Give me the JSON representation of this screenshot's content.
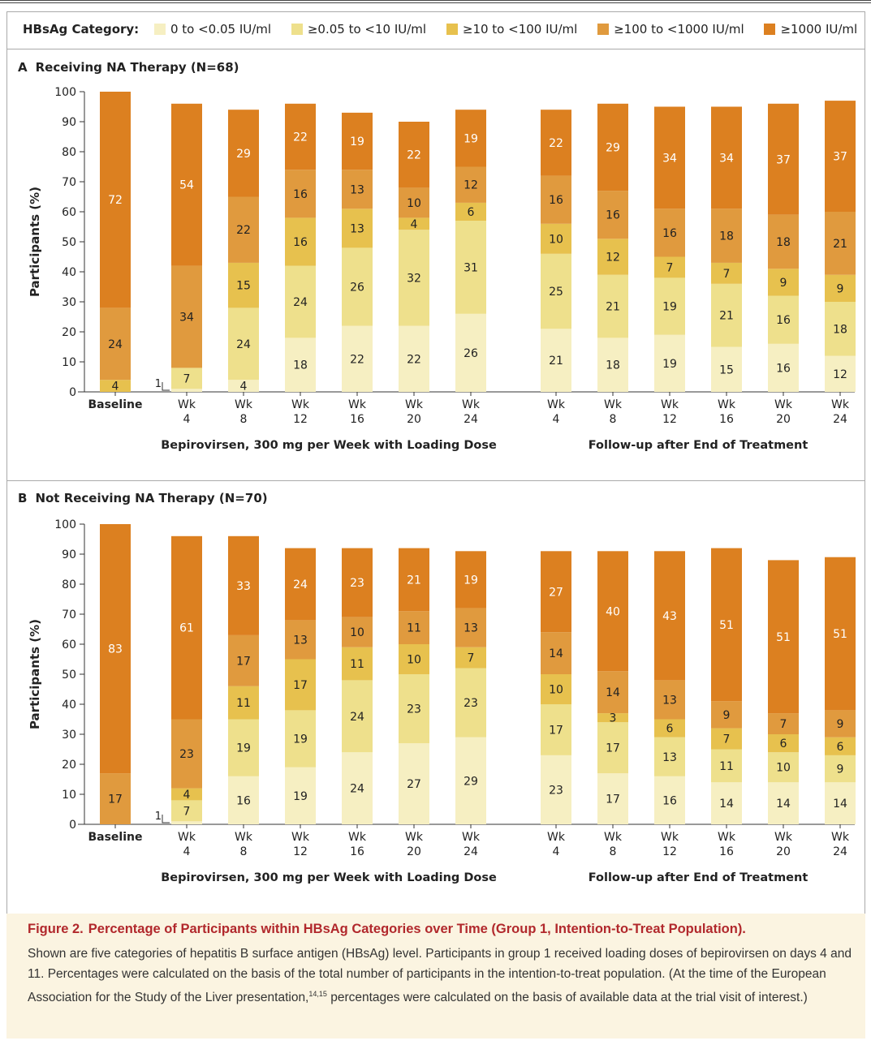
{
  "legend": {
    "title": "HBsAg Category:",
    "items": [
      {
        "label": "0 to <0.05 IU/ml",
        "color": "#f6efc2"
      },
      {
        "label": "≥0.05 to <10 IU/ml",
        "color": "#eee08c"
      },
      {
        "label": "≥10 to <100 IU/ml",
        "color": "#e7c14e"
      },
      {
        "label": "≥100 to <1000 IU/ml",
        "color": "#e09a3e"
      },
      {
        "label": "≥1000 IU/ml",
        "color": "#dc8020"
      }
    ]
  },
  "chart_data": [
    {
      "type": "bar",
      "stacked": true,
      "panel_letter": "A",
      "title": "Receiving NA Therapy (N=68)",
      "ylabel": "Participants (%)",
      "ylim": [
        0,
        100
      ],
      "yticks": [
        0,
        10,
        20,
        30,
        40,
        50,
        60,
        70,
        80,
        90,
        100
      ],
      "categories": [
        {
          "line1": "Baseline",
          "line2": ""
        },
        {
          "line1": "Wk",
          "line2": "4"
        },
        {
          "line1": "Wk",
          "line2": "8"
        },
        {
          "line1": "Wk",
          "line2": "12"
        },
        {
          "line1": "Wk",
          "line2": "16"
        },
        {
          "line1": "Wk",
          "line2": "20"
        },
        {
          "line1": "Wk",
          "line2": "24"
        },
        {
          "line1": "Wk",
          "line2": "4"
        },
        {
          "line1": "Wk",
          "line2": "8"
        },
        {
          "line1": "Wk",
          "line2": "12"
        },
        {
          "line1": "Wk",
          "line2": "16"
        },
        {
          "line1": "Wk",
          "line2": "20"
        },
        {
          "line1": "Wk",
          "line2": "24"
        }
      ],
      "groups": [
        "Bepirovirsen, 300 mg per Week with Loading Dose",
        "Follow-up after End of Treatment"
      ],
      "series": [
        {
          "name": "0 to <0.05 IU/ml",
          "values": [
            0,
            1,
            4,
            18,
            22,
            22,
            26,
            21,
            18,
            19,
            15,
            16,
            12
          ]
        },
        {
          "name": "≥0.05 to <10 IU/ml",
          "values": [
            0,
            7,
            24,
            24,
            26,
            32,
            31,
            25,
            21,
            19,
            21,
            16,
            18
          ]
        },
        {
          "name": "≥10 to <100 IU/ml",
          "values": [
            4,
            0,
            15,
            16,
            13,
            4,
            6,
            10,
            12,
            7,
            7,
            9,
            9
          ]
        },
        {
          "name": "≥100 to <1000 IU/ml",
          "values": [
            24,
            34,
            22,
            16,
            13,
            10,
            12,
            16,
            16,
            16,
            18,
            18,
            21
          ]
        },
        {
          "name": "≥1000 IU/ml",
          "values": [
            72,
            54,
            29,
            22,
            19,
            22,
            19,
            22,
            29,
            34,
            34,
            37,
            37
          ]
        }
      ]
    },
    {
      "type": "bar",
      "stacked": true,
      "panel_letter": "B",
      "title": "Not Receiving NA Therapy (N=70)",
      "ylabel": "Participants (%)",
      "ylim": [
        0,
        100
      ],
      "yticks": [
        0,
        10,
        20,
        30,
        40,
        50,
        60,
        70,
        80,
        90,
        100
      ],
      "categories": [
        {
          "line1": "Baseline",
          "line2": ""
        },
        {
          "line1": "Wk",
          "line2": "4"
        },
        {
          "line1": "Wk",
          "line2": "8"
        },
        {
          "line1": "Wk",
          "line2": "12"
        },
        {
          "line1": "Wk",
          "line2": "16"
        },
        {
          "line1": "Wk",
          "line2": "20"
        },
        {
          "line1": "Wk",
          "line2": "24"
        },
        {
          "line1": "Wk",
          "line2": "4"
        },
        {
          "line1": "Wk",
          "line2": "8"
        },
        {
          "line1": "Wk",
          "line2": "12"
        },
        {
          "line1": "Wk",
          "line2": "16"
        },
        {
          "line1": "Wk",
          "line2": "20"
        },
        {
          "line1": "Wk",
          "line2": "24"
        }
      ],
      "groups": [
        "Bepirovirsen, 300 mg per Week with Loading Dose",
        "Follow-up after End of Treatment"
      ],
      "series": [
        {
          "name": "0 to <0.05 IU/ml",
          "values": [
            0,
            1,
            16,
            19,
            24,
            27,
            29,
            23,
            17,
            16,
            14,
            14,
            14
          ]
        },
        {
          "name": "≥0.05 to <10 IU/ml",
          "values": [
            0,
            7,
            19,
            19,
            24,
            23,
            23,
            17,
            17,
            13,
            11,
            10,
            9
          ]
        },
        {
          "name": "≥10 to <100 IU/ml",
          "values": [
            0,
            4,
            11,
            17,
            11,
            10,
            7,
            10,
            3,
            6,
            7,
            6,
            6
          ]
        },
        {
          "name": "≥100 to <1000 IU/ml",
          "values": [
            17,
            23,
            17,
            13,
            10,
            11,
            13,
            14,
            14,
            13,
            9,
            7,
            9
          ]
        },
        {
          "name": "≥1000 IU/ml",
          "values": [
            83,
            61,
            33,
            24,
            23,
            21,
            19,
            27,
            40,
            43,
            51,
            51,
            51
          ]
        }
      ]
    }
  ],
  "caption": {
    "label": "Figure 2.",
    "title": "Percentage of Participants within HBsAg Categories over Time (Group 1, Intention-to-Treat Population).",
    "body_before_ref": "Shown are five categories of hepatitis B surface antigen (HBsAg) level. Participants in group 1 received loading doses of bepirovirsen on days 4 and 11. Percentages were calculated on the basis of the total number of participants in the intention-to-treat population. (At the time of the European Association for the Study of the Liver presentation,",
    "refs": "14,15",
    "body_after_ref": " percentages were calculated on the basis of available data at the trial visit of interest.)"
  }
}
